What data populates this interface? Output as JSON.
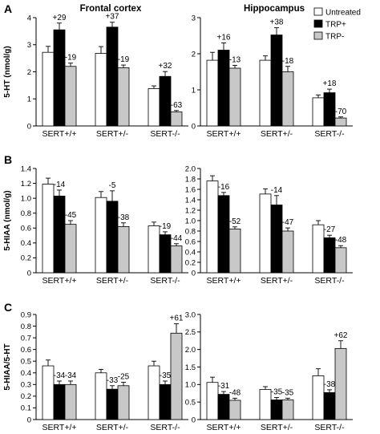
{
  "columns": [
    "Frontal cortex",
    "Hippocampus"
  ],
  "panel_letters": [
    "A",
    "B",
    "C"
  ],
  "legend": [
    {
      "label": "Untreated",
      "color": "#ffffff"
    },
    {
      "label": "TRP+",
      "color": "#000000"
    },
    {
      "label": "TRP-",
      "color": "#c8c8c8"
    }
  ],
  "chart_data": [
    {
      "type": "bar",
      "row": "A",
      "col": 0,
      "title": "Frontal cortex",
      "ylabel": "5-HT (nmol/g)",
      "categories": [
        "SERT+/+",
        "SERT+/-",
        "SERT-/-"
      ],
      "ylim": [
        0,
        4
      ],
      "ticks": [
        0,
        1,
        2,
        3,
        4
      ],
      "tick_labels": [
        "0",
        "1",
        "2",
        "3",
        "4"
      ],
      "series": [
        {
          "name": "Untreated",
          "values": [
            2.72,
            2.68,
            1.38
          ],
          "errors": [
            0.22,
            0.25,
            0.1
          ]
        },
        {
          "name": "TRP+",
          "values": [
            3.55,
            3.65,
            1.83
          ],
          "errors": [
            0.25,
            0.18,
            0.18
          ]
        },
        {
          "name": "TRP-",
          "values": [
            2.2,
            2.15,
            0.52
          ],
          "errors": [
            0.12,
            0.1,
            0.05
          ]
        }
      ],
      "annotations": [
        [
          "",
          "+29",
          "-19"
        ],
        [
          "",
          "+37",
          "-19"
        ],
        [
          "",
          "+32",
          "-63"
        ]
      ]
    },
    {
      "type": "bar",
      "row": "A",
      "col": 1,
      "title": "Hippocampus",
      "ylabel": "",
      "categories": [
        "SERT+/+",
        "SERT+/-",
        "SERT-/-"
      ],
      "ylim": [
        0,
        3
      ],
      "ticks": [
        0,
        1,
        2,
        3
      ],
      "tick_labels": [
        "0",
        "1",
        "2",
        "3"
      ],
      "series": [
        {
          "name": "Untreated",
          "values": [
            1.82,
            1.82,
            0.78
          ],
          "errors": [
            0.22,
            0.12,
            0.08
          ]
        },
        {
          "name": "TRP+",
          "values": [
            2.1,
            2.52,
            0.92
          ],
          "errors": [
            0.2,
            0.2,
            0.1
          ]
        },
        {
          "name": "TRP-",
          "values": [
            1.6,
            1.5,
            0.22
          ],
          "errors": [
            0.08,
            0.15,
            0.03
          ]
        }
      ],
      "annotations": [
        [
          "",
          "+16",
          "-13"
        ],
        [
          "",
          "+38",
          "-18"
        ],
        [
          "",
          "+18",
          "-70"
        ]
      ]
    },
    {
      "type": "bar",
      "row": "B",
      "col": 0,
      "title": "",
      "ylabel": "5-HIAA (nmol/g)",
      "categories": [
        "SERT+/+",
        "SERT+/-",
        "SERT-/-"
      ],
      "ylim": [
        0,
        1.4
      ],
      "ticks": [
        0,
        0.2,
        0.4,
        0.6,
        0.8,
        1.0,
        1.2,
        1.4
      ],
      "tick_labels": [
        "0",
        "0.2",
        "0.4",
        "0.6",
        "0.8",
        "1.0",
        "1.2",
        "1.4"
      ],
      "series": [
        {
          "name": "Untreated",
          "values": [
            1.19,
            1.01,
            0.63
          ],
          "errors": [
            0.08,
            0.08,
            0.05
          ]
        },
        {
          "name": "TRP+",
          "values": [
            1.03,
            0.96,
            0.51
          ],
          "errors": [
            0.08,
            0.14,
            0.04
          ]
        },
        {
          "name": "TRP-",
          "values": [
            0.65,
            0.62,
            0.36
          ],
          "errors": [
            0.05,
            0.05,
            0.03
          ]
        }
      ],
      "annotations": [
        [
          "",
          "-14",
          "-45"
        ],
        [
          "",
          "-5",
          "-38"
        ],
        [
          "",
          "-19",
          "-44"
        ]
      ]
    },
    {
      "type": "bar",
      "row": "B",
      "col": 1,
      "title": "",
      "ylabel": "",
      "categories": [
        "SERT+/+",
        "SERT+/-",
        "SERT-/-"
      ],
      "ylim": [
        0,
        2.0
      ],
      "ticks": [
        0,
        0.2,
        0.4,
        0.6,
        0.8,
        1.0,
        1.2,
        1.4,
        1.6,
        1.8,
        2.0
      ],
      "tick_labels": [
        "0",
        "0.2",
        "0.4",
        "0.6",
        "0.8",
        "1.0",
        "1.2",
        "1.4",
        "1.6",
        "1.8",
        "2.0"
      ],
      "series": [
        {
          "name": "Untreated",
          "values": [
            1.76,
            1.51,
            0.92
          ],
          "errors": [
            0.1,
            0.1,
            0.08
          ]
        },
        {
          "name": "TRP+",
          "values": [
            1.48,
            1.3,
            0.67
          ],
          "errors": [
            0.06,
            0.18,
            0.05
          ]
        },
        {
          "name": "TRP-",
          "values": [
            0.84,
            0.8,
            0.48
          ],
          "errors": [
            0.04,
            0.06,
            0.04
          ]
        }
      ],
      "annotations": [
        [
          "",
          "-16",
          "-52"
        ],
        [
          "",
          "-14",
          "-47"
        ],
        [
          "",
          "-27",
          "-48"
        ]
      ]
    },
    {
      "type": "bar",
      "row": "C",
      "col": 0,
      "title": "",
      "ylabel": "5-HIAA/5-HT",
      "categories": [
        "SERT+/+",
        "SERT+/-",
        "SERT-/-"
      ],
      "ylim": [
        0,
        0.9
      ],
      "ticks": [
        0,
        0.1,
        0.2,
        0.3,
        0.4,
        0.5,
        0.6,
        0.7,
        0.8,
        0.9
      ],
      "tick_labels": [
        "0",
        "0.1",
        "0.2",
        "0.3",
        "0.4",
        "0.5",
        "0.6",
        "0.7",
        "0.8",
        "0.9"
      ],
      "series": [
        {
          "name": "Untreated",
          "values": [
            0.46,
            0.4,
            0.46
          ],
          "errors": [
            0.05,
            0.03,
            0.04
          ]
        },
        {
          "name": "TRP+",
          "values": [
            0.3,
            0.26,
            0.3
          ],
          "errors": [
            0.03,
            0.03,
            0.03
          ]
        },
        {
          "name": "TRP-",
          "values": [
            0.3,
            0.29,
            0.74
          ],
          "errors": [
            0.03,
            0.03,
            0.08
          ]
        }
      ],
      "annotations": [
        [
          "",
          "-34",
          "-34"
        ],
        [
          "",
          "-33",
          "-25"
        ],
        [
          "",
          "-35",
          "+61"
        ]
      ]
    },
    {
      "type": "bar",
      "row": "C",
      "col": 1,
      "title": "",
      "ylabel": "",
      "categories": [
        "SERT+/+",
        "SERT+/-",
        "SERT-/-"
      ],
      "ylim": [
        0,
        3.0
      ],
      "ticks": [
        0,
        0.5,
        1.0,
        1.5,
        2.0,
        2.5,
        3.0
      ],
      "tick_labels": [
        "0",
        "0.5",
        "1.0",
        "1.5",
        "2.0",
        "2.5",
        "3.0"
      ],
      "series": [
        {
          "name": "Untreated",
          "values": [
            1.06,
            0.86,
            1.25
          ],
          "errors": [
            0.15,
            0.08,
            0.2
          ]
        },
        {
          "name": "TRP+",
          "values": [
            0.72,
            0.56,
            0.77
          ],
          "errors": [
            0.08,
            0.07,
            0.08
          ]
        },
        {
          "name": "TRP-",
          "values": [
            0.55,
            0.56,
            2.03
          ],
          "errors": [
            0.06,
            0.05,
            0.22
          ]
        }
      ],
      "annotations": [
        [
          "",
          "-31",
          "-48"
        ],
        [
          "",
          "-35",
          "-35"
        ],
        [
          "",
          "-38",
          "+62"
        ]
      ]
    }
  ]
}
